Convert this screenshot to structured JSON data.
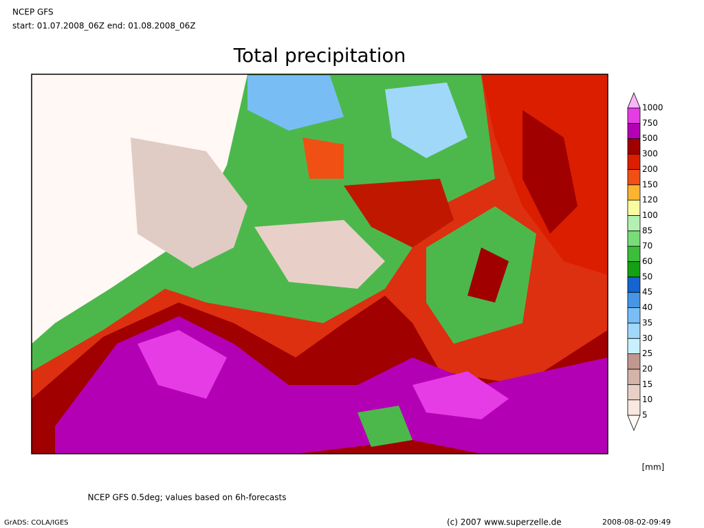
{
  "header": {
    "model": "NCEP GFS",
    "period": "start: 01.07.2008_06Z end: 01.08.2008_06Z"
  },
  "title": "Total precipitation",
  "legend": {
    "labels": [
      "5",
      "10",
      "15",
      "20",
      "25",
      "30",
      "35",
      "40",
      "45",
      "50",
      "60",
      "70",
      "85",
      "100",
      "120",
      "150",
      "200",
      "300",
      "500",
      "750",
      "1000"
    ],
    "colors": [
      "#fff8f4",
      "#f8e8e0",
      "#e8d0c8",
      "#d4b4a8",
      "#c09890",
      "#c8f0ff",
      "#a0d8fa",
      "#78bef5",
      "#4696e6",
      "#1464d2",
      "#14a014",
      "#3cbe3c",
      "#78dc78",
      "#b4f0b4",
      "#fafaa0",
      "#fab432",
      "#f05014",
      "#dc1e00",
      "#a00000",
      "#b400b4",
      "#e63ce6",
      "#fab4fa"
    ],
    "unit": "[mm]"
  },
  "footer": {
    "note": "NCEP GFS 0.5deg; values based on 6h-forecasts",
    "software": "GrADS: COLA/IGES",
    "copyright": "(c) 2007 www.superzelle.de",
    "timestamp": "2008-08-02-09:49"
  }
}
